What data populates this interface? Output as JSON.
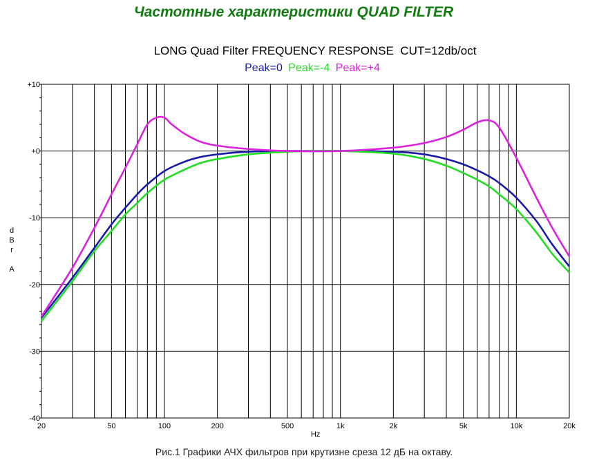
{
  "page_heading": "Частотные характеристики QUAD FILTER",
  "caption": "Рис.1 Графики АЧХ фильтров при крутизне среза 12 дБ на октаву.",
  "colors": {
    "heading": "#117a11",
    "grid": "#000000"
  },
  "chart_data": {
    "type": "line",
    "title": "LONG Quad Filter FREQUENCY RESPONSE  CUT=12db/oct",
    "xlabel": "Hz",
    "ylabel": [
      "d",
      "B",
      "r",
      "",
      "A"
    ],
    "xscale": "log",
    "xlim": [
      20,
      20000
    ],
    "ylim": [
      -40,
      10
    ],
    "grid": true,
    "x_ticks": [
      {
        "value": 20,
        "label": "20"
      },
      {
        "value": 50,
        "label": "50"
      },
      {
        "value": 100,
        "label": "100"
      },
      {
        "value": 200,
        "label": "200"
      },
      {
        "value": 500,
        "label": "500"
      },
      {
        "value": 1000,
        "label": "1k"
      },
      {
        "value": 2000,
        "label": "2k"
      },
      {
        "value": 5000,
        "label": "5k"
      },
      {
        "value": 10000,
        "label": "10k"
      },
      {
        "value": 20000,
        "label": "20k"
      }
    ],
    "y_ticks": [
      {
        "value": 10,
        "label": "+10"
      },
      {
        "value": 0,
        "label": "+0"
      },
      {
        "value": -10,
        "label": "-10"
      },
      {
        "value": -20,
        "label": "-20"
      },
      {
        "value": -30,
        "label": "-30"
      },
      {
        "value": -40,
        "label": "-40"
      }
    ],
    "series": [
      {
        "name": "Peak=0",
        "color": "#1a1aa8",
        "x": [
          20,
          30,
          40,
          50,
          60,
          70,
          80,
          100,
          130,
          160,
          200,
          300,
          500,
          700,
          1000,
          2000,
          3000,
          4000,
          5000,
          6000,
          7000,
          8000,
          10000,
          13000,
          16000,
          20000
        ],
        "y": [
          -25,
          -19,
          -14.5,
          -11,
          -8.5,
          -6.5,
          -5,
          -3,
          -1.6,
          -0.9,
          -0.5,
          -0.1,
          0,
          0,
          0,
          -0.1,
          -0.5,
          -1.2,
          -2,
          -2.9,
          -3.8,
          -4.8,
          -7,
          -10.5,
          -14,
          -17.3
        ]
      },
      {
        "name": "Peak=-4",
        "color": "#22dd22",
        "x": [
          20,
          30,
          40,
          50,
          60,
          70,
          80,
          100,
          130,
          160,
          200,
          300,
          500,
          700,
          1000,
          2000,
          3000,
          4000,
          5000,
          6000,
          7000,
          8000,
          10000,
          13000,
          16000,
          20000
        ],
        "y": [
          -25.5,
          -19.5,
          -15,
          -12,
          -9.5,
          -7.8,
          -6.3,
          -4.3,
          -2.8,
          -1.8,
          -1.2,
          -0.5,
          -0.1,
          0,
          0,
          -0.4,
          -1.2,
          -2.2,
          -3.3,
          -4.3,
          -5.3,
          -6.5,
          -8.7,
          -12.2,
          -15.4,
          -18.2
        ]
      },
      {
        "name": "Peak=+4",
        "color": "#dd22dd",
        "x": [
          20,
          30,
          40,
          50,
          60,
          70,
          80,
          90,
          100,
          110,
          130,
          160,
          200,
          300,
          500,
          1000,
          2000,
          3000,
          4000,
          5000,
          6000,
          7000,
          8000,
          10000,
          13000,
          16000,
          20000
        ],
        "y": [
          -24.8,
          -17.5,
          -11.5,
          -6.5,
          -2.5,
          1,
          4,
          5,
          5,
          4,
          2.6,
          1.4,
          0.8,
          0.3,
          0,
          0,
          0.5,
          1.2,
          2.1,
          3.2,
          4.3,
          4.6,
          3.5,
          -1,
          -7,
          -11.5,
          -15.8
        ]
      }
    ]
  }
}
